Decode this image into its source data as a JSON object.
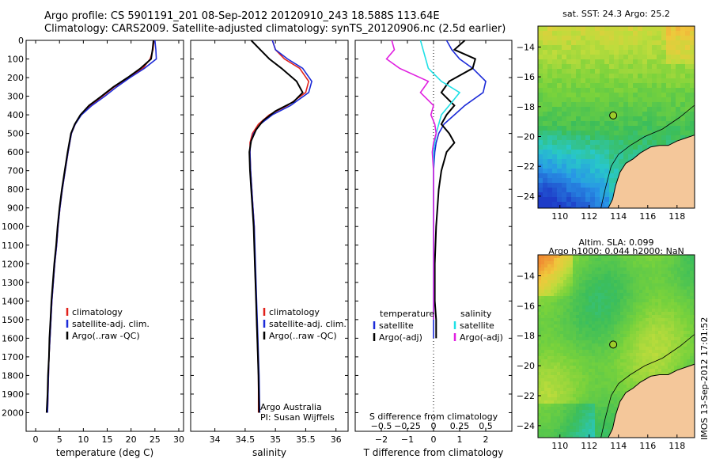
{
  "header": {
    "line1": "Argo profile: CS 5901191_201 08-Sep-2012 20120910_243 18.588S 113.64E",
    "line2": "Climatology: CARS2009. Satellite-adjusted climatology: synTS_20120906.nc (2.5d earlier)"
  },
  "stamp": "IMOS 13-Sep-2012 17:01:52",
  "colors": {
    "climatology": "#e0201a",
    "satellite": "#1c2bd8",
    "argo": "#000000",
    "cyan": "#1fe0e6",
    "magenta": "#e020e0",
    "land": "#f4c79a",
    "coast": "#000000"
  },
  "chart_data": [
    {
      "type": "line",
      "xlabel": "temperature (deg C)",
      "xlim": [
        -2,
        31
      ],
      "xticks": [
        0,
        5,
        10,
        15,
        20,
        25,
        30
      ],
      "ylim": [
        0,
        2100
      ],
      "yticks": [
        0,
        100,
        200,
        300,
        400,
        500,
        600,
        700,
        800,
        900,
        1000,
        1100,
        1200,
        1300,
        1400,
        1500,
        1600,
        1700,
        1800,
        1900,
        2000
      ],
      "y_reversed": true,
      "legend": [
        "climatology",
        "satellite-adj. clim.",
        "Argo(..raw -QC)"
      ],
      "series": [
        {
          "name": "climatology",
          "color": "#e0201a",
          "x": [
            24.8,
            24.6,
            24.0,
            22.5,
            19.5,
            16.5,
            14.0,
            11.5,
            9.5,
            8.3,
            7.5,
            6.8,
            6.2,
            5.6,
            5.1,
            4.7,
            4.4,
            4.0,
            3.7,
            3.4,
            3.2,
            3.0,
            2.8,
            2.7,
            2.6,
            2.5
          ],
          "y": [
            0,
            50,
            100,
            150,
            200,
            250,
            300,
            350,
            400,
            450,
            500,
            600,
            700,
            800,
            900,
            1000,
            1100,
            1200,
            1300,
            1400,
            1500,
            1600,
            1700,
            1800,
            1900,
            2000
          ]
        },
        {
          "name": "satellite-adj. clim.",
          "color": "#1c2bd8",
          "x": [
            25.0,
            25.2,
            25.3,
            22.8,
            19.8,
            17.0,
            14.5,
            11.8,
            9.6,
            8.3,
            7.5,
            6.8,
            6.2,
            5.6,
            5.1,
            4.7,
            4.4,
            4.0,
            3.7,
            3.4,
            3.2,
            3.0,
            2.8,
            2.7,
            2.6,
            2.5
          ],
          "y": [
            0,
            50,
            100,
            150,
            200,
            250,
            300,
            350,
            400,
            450,
            500,
            600,
            700,
            800,
            900,
            1000,
            1100,
            1200,
            1300,
            1400,
            1500,
            1600,
            1700,
            1800,
            1900,
            2000
          ]
        },
        {
          "name": "Argo(..raw -QC)",
          "color": "#000000",
          "x": [
            24.7,
            24.5,
            24.2,
            22.0,
            19.3,
            16.3,
            13.8,
            11.2,
            9.4,
            8.2,
            7.4,
            6.7,
            6.1,
            5.5,
            5.0,
            4.6,
            4.3,
            3.9,
            3.6,
            3.3,
            3.1,
            2.9,
            2.8,
            2.6,
            2.5,
            2.3
          ],
          "y": [
            0,
            50,
            100,
            150,
            200,
            250,
            300,
            350,
            400,
            450,
            500,
            600,
            700,
            800,
            900,
            1000,
            1100,
            1200,
            1300,
            1400,
            1500,
            1600,
            1700,
            1800,
            1900,
            2000
          ]
        }
      ]
    },
    {
      "type": "line",
      "xlabel": "salinity",
      "xlim": [
        33.6,
        36.2
      ],
      "xticks": [
        34,
        34.5,
        35,
        35.5,
        36
      ],
      "ylim": [
        0,
        2100
      ],
      "y_reversed": true,
      "legend": [
        "climatology",
        "satellite-adj. clim.",
        "Argo(..raw -QC)"
      ],
      "annotation": [
        "Argo Australia",
        "PI: Susan Wijffels"
      ],
      "series": [
        {
          "name": "climatology",
          "color": "#e0201a",
          "x": [
            34.95,
            35.0,
            35.15,
            35.4,
            35.55,
            35.5,
            35.2,
            34.9,
            34.72,
            34.62,
            34.58,
            34.58,
            34.59,
            34.61,
            34.63,
            34.65,
            34.66,
            34.68,
            34.69,
            34.7,
            34.71,
            34.72,
            34.72
          ],
          "y": [
            0,
            50,
            100,
            150,
            220,
            280,
            350,
            400,
            450,
            500,
            550,
            600,
            700,
            800,
            900,
            1000,
            1200,
            1400,
            1500,
            1600,
            1700,
            1800,
            2000
          ]
        },
        {
          "name": "satellite-adj. clim.",
          "color": "#1c2bd8",
          "x": [
            34.95,
            35.0,
            35.2,
            35.45,
            35.6,
            35.55,
            35.25,
            34.95,
            34.75,
            34.64,
            34.59,
            34.58,
            34.59,
            34.61,
            34.63,
            34.65,
            34.67,
            34.69,
            34.7,
            34.71,
            34.72,
            34.73,
            34.74
          ],
          "y": [
            0,
            50,
            100,
            150,
            220,
            280,
            350,
            400,
            450,
            500,
            550,
            600,
            700,
            800,
            900,
            1000,
            1200,
            1400,
            1500,
            1600,
            1700,
            1800,
            2000
          ]
        },
        {
          "name": "Argo(..raw -QC)",
          "color": "#000000",
          "x": [
            34.6,
            34.75,
            34.9,
            35.1,
            35.35,
            35.45,
            35.3,
            35.0,
            34.8,
            34.68,
            34.6,
            34.57,
            34.58,
            34.6,
            34.62,
            34.64,
            34.66,
            34.68,
            34.69,
            34.7,
            34.71,
            34.72,
            34.73
          ],
          "y": [
            0,
            50,
            100,
            150,
            220,
            280,
            330,
            380,
            430,
            480,
            540,
            600,
            700,
            800,
            900,
            1000,
            1200,
            1400,
            1500,
            1600,
            1700,
            1800,
            2000
          ]
        }
      ]
    },
    {
      "type": "line",
      "xlabel": "T difference from climatology",
      "xlabel_top": "S difference from climatology",
      "xlim": [
        -3,
        3
      ],
      "xticks": [
        -2,
        -1,
        0,
        1,
        2
      ],
      "xticks_s": [
        -0.5,
        -0.25,
        0,
        0.25,
        0.5
      ],
      "xtick_labels_s": [
        "-0.5",
        "-0.25",
        "0",
        "0.25",
        "0.5"
      ],
      "ylim": [
        0,
        2100
      ],
      "y_reversed": true,
      "legend": [
        "temperature",
        "satellite",
        "Argo(-adj)",
        "salinity",
        "satellite",
        "Argo(-adj)"
      ],
      "series": [
        {
          "name": "satellite",
          "color": "#1c2bd8",
          "x": [
            0.5,
            0.7,
            1.0,
            1.5,
            2.0,
            1.9,
            1.2,
            0.8,
            0.4,
            0.2,
            0.1,
            0.05,
            0.0,
            0.0,
            0.0,
            0.0,
            0.0,
            0.0,
            0.0
          ],
          "y": [
            0,
            50,
            100,
            150,
            220,
            280,
            350,
            400,
            450,
            500,
            550,
            600,
            700,
            800,
            1000,
            1200,
            1400,
            1500,
            1600
          ]
        },
        {
          "name": "Argo(-adj)",
          "color": "#000000",
          "x": [
            1.2,
            0.8,
            1.6,
            1.5,
            0.6,
            0.3,
            0.8,
            0.5,
            0.3,
            0.6,
            0.8,
            0.5,
            0.3,
            0.2,
            0.1,
            0.05,
            0.05,
            0.1,
            0.1
          ],
          "y": [
            0,
            50,
            100,
            150,
            220,
            280,
            350,
            400,
            450,
            500,
            550,
            600,
            700,
            800,
            1000,
            1200,
            1400,
            1500,
            1600
          ]
        },
        {
          "name": "satellite (salinity)",
          "color": "#1fe0e6",
          "x": [
            -0.5,
            -0.4,
            -0.3,
            -0.2,
            0.3,
            1.0,
            0.6,
            0.3,
            0.2,
            0.1,
            0.05,
            0.0,
            0.0,
            0.0,
            0.0,
            0.0,
            0.0,
            0.0
          ],
          "y": [
            0,
            50,
            100,
            150,
            220,
            280,
            350,
            400,
            450,
            500,
            550,
            600,
            700,
            800,
            1000,
            1200,
            1400,
            1500
          ]
        },
        {
          "name": "Argo(-adj) (salinity)",
          "color": "#e020e0",
          "x": [
            -1.6,
            -1.5,
            -1.8,
            -1.3,
            -0.2,
            -0.5,
            0.0,
            -0.1,
            0.05,
            0.1,
            0.0,
            -0.05,
            0.0,
            0.0,
            0.0,
            0.0,
            0.0,
            0.0
          ],
          "y": [
            0,
            50,
            100,
            150,
            220,
            280,
            350,
            400,
            450,
            500,
            550,
            600,
            700,
            800,
            1000,
            1200,
            1400,
            1500
          ]
        }
      ]
    },
    {
      "type": "heatmap",
      "title": "sat. SST: 24.3 Argo: 25.2",
      "xticks": [
        110,
        112,
        114,
        116,
        118
      ],
      "yticks": [
        -14,
        -16,
        -18,
        -20,
        -22,
        -24
      ],
      "xlim": [
        108.5,
        119.2
      ],
      "ylim": [
        -24.8,
        -12.6
      ],
      "marker": {
        "lon": 113.64,
        "lat": -18.588
      }
    },
    {
      "type": "heatmap",
      "title": "Altim. SLA: 0.099",
      "subtitle": "Argo h1000: 0.044 h2000: NaN",
      "xticks": [
        110,
        112,
        114,
        116,
        118
      ],
      "yticks": [
        -14,
        -16,
        -18,
        -20,
        -22,
        -24
      ],
      "xlim": [
        108.5,
        119.2
      ],
      "ylim": [
        -24.8,
        -12.6
      ],
      "marker": {
        "lon": 113.64,
        "lat": -18.588
      }
    }
  ]
}
